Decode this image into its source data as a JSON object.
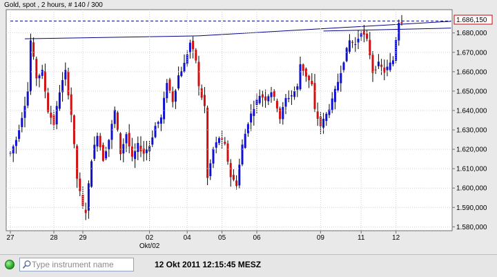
{
  "chart_data": {
    "type": "candlestick",
    "title": "Gold, spot , 2 hours, # 140 / 300",
    "current_price_label": "1.686,150",
    "y_axis": {
      "range": [
        1578000,
        1692000
      ],
      "ticks": [
        {
          "value": 1680000,
          "label": "1.680,000"
        },
        {
          "value": 1670000,
          "label": "1.670,000"
        },
        {
          "value": 1660000,
          "label": "1.660,000"
        },
        {
          "value": 1650000,
          "label": "1.650,000"
        },
        {
          "value": 1640000,
          "label": "1.640,000"
        },
        {
          "value": 1630000,
          "label": "1.630,000"
        },
        {
          "value": 1620000,
          "label": "1.620,000"
        },
        {
          "value": 1610000,
          "label": "1.610,000"
        },
        {
          "value": 1600000,
          "label": "1.600,000"
        },
        {
          "value": 1590000,
          "label": "1.590,000"
        },
        {
          "value": 1580000,
          "label": "1.580,000"
        }
      ],
      "side": "right"
    },
    "x_axis": {
      "range": [
        0,
        140
      ],
      "ticks": [
        {
          "bar": 0,
          "label": "27"
        },
        {
          "bar": 15,
          "label": "28"
        },
        {
          "bar": 25,
          "label": "29"
        },
        {
          "bar": 48,
          "label": "02"
        },
        {
          "bar": 61,
          "label": "04"
        },
        {
          "bar": 73,
          "label": "05"
        },
        {
          "bar": 85,
          "label": "06"
        },
        {
          "bar": 107,
          "label": "09"
        },
        {
          "bar": 121,
          "label": "11"
        },
        {
          "bar": 133,
          "label": "12"
        }
      ],
      "sub_label": {
        "bar": 48,
        "label": "Okt/02"
      }
    },
    "trendlines": [
      {
        "style": "solid",
        "from": [
          5,
          1677000
        ],
        "to": [
          65,
          1678500
        ]
      },
      {
        "style": "solid",
        "from": [
          65,
          1678500
        ],
        "to": [
          152,
          1686000
        ]
      },
      {
        "style": "solid",
        "from": [
          108,
          1681000
        ],
        "to": [
          152,
          1682500
        ]
      },
      {
        "style": "dashed",
        "from": [
          0,
          1686150
        ],
        "to": [
          152,
          1686150
        ]
      }
    ],
    "price_keypoints": [
      [
        0,
        1618000
      ],
      [
        2,
        1625000
      ],
      [
        4,
        1637000
      ],
      [
        6,
        1650000
      ],
      [
        7,
        1676000
      ],
      [
        9,
        1657000
      ],
      [
        11,
        1660000
      ],
      [
        13,
        1640000
      ],
      [
        15,
        1633000
      ],
      [
        17,
        1650000
      ],
      [
        19,
        1660000
      ],
      [
        21,
        1638000
      ],
      [
        23,
        1605000
      ],
      [
        25,
        1590000
      ],
      [
        26,
        1588000
      ],
      [
        28,
        1615000
      ],
      [
        30,
        1628000
      ],
      [
        32,
        1615000
      ],
      [
        34,
        1625000
      ],
      [
        36,
        1640000
      ],
      [
        38,
        1618000
      ],
      [
        40,
        1628000
      ],
      [
        42,
        1615000
      ],
      [
        44,
        1622000
      ],
      [
        46,
        1618000
      ],
      [
        48,
        1622000
      ],
      [
        50,
        1632000
      ],
      [
        52,
        1636000
      ],
      [
        54,
        1655000
      ],
      [
        56,
        1645000
      ],
      [
        58,
        1658000
      ],
      [
        60,
        1664000
      ],
      [
        62,
        1675000
      ],
      [
        64,
        1666000
      ],
      [
        65,
        1652000
      ],
      [
        67,
        1642000
      ],
      [
        68,
        1605000
      ],
      [
        70,
        1620000
      ],
      [
        72,
        1626000
      ],
      [
        74,
        1622000
      ],
      [
        76,
        1606000
      ],
      [
        78,
        1602000
      ],
      [
        80,
        1622000
      ],
      [
        82,
        1634000
      ],
      [
        84,
        1642000
      ],
      [
        86,
        1648000
      ],
      [
        88,
        1646000
      ],
      [
        90,
        1650000
      ],
      [
        92,
        1642000
      ],
      [
        93,
        1636000
      ],
      [
        95,
        1646000
      ],
      [
        97,
        1648000
      ],
      [
        99,
        1652000
      ],
      [
        100,
        1664000
      ],
      [
        102,
        1658000
      ],
      [
        104,
        1653000
      ],
      [
        105,
        1640000
      ],
      [
        107,
        1632000
      ],
      [
        109,
        1638000
      ],
      [
        111,
        1645000
      ],
      [
        113,
        1655000
      ],
      [
        115,
        1666000
      ],
      [
        117,
        1676000
      ],
      [
        119,
        1674000
      ],
      [
        121,
        1681000
      ],
      [
        123,
        1676000
      ],
      [
        124,
        1669000
      ],
      [
        125,
        1660000
      ],
      [
        127,
        1664000
      ],
      [
        129,
        1660000
      ],
      [
        131,
        1664000
      ],
      [
        132,
        1666000
      ],
      [
        133,
        1677000
      ],
      [
        134,
        1686000
      ],
      [
        135,
        1686150
      ]
    ],
    "colors": {
      "up": "#1010d0",
      "down": "#d01010",
      "trendline": "#000080",
      "price_box_border": "#cc0000"
    }
  },
  "bottom_bar": {
    "search_placeholder": "Type instrument name",
    "timestamp": "12 Okt 2011 12:15:45 MESZ"
  }
}
